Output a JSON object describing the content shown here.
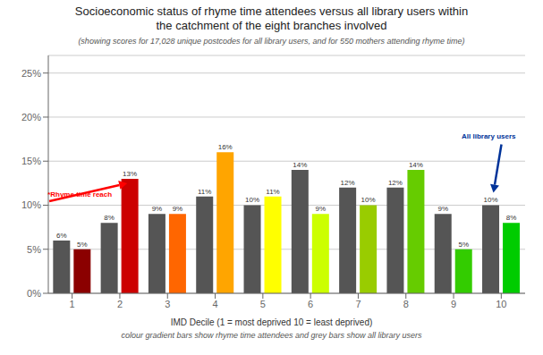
{
  "chart_data": {
    "type": "bar",
    "title": "Socioeconomic status of rhyme time attendees versus all library users within\nthe catchment of the eight branches involved",
    "subtitle": "(showing scores for 17,028 unique postcodes for all library users, and for 550 mothers attending rhyme time)",
    "xlabel": "IMD Decile (1 = most deprived 10 = least deprived)",
    "categories": [
      "1",
      "2",
      "3",
      "4",
      "5",
      "6",
      "7",
      "8",
      "9",
      "10"
    ],
    "series": [
      {
        "color": "#555555",
        "values": [
          0.06,
          0.08,
          0.09,
          0.11,
          0.1,
          0.14,
          0.12,
          0.12,
          0.09,
          0.1
        ],
        "value_labels": [
          "6%",
          "8%",
          "9%",
          "11%",
          "10%",
          "14%",
          "12%",
          "12%",
          "9%",
          "10%"
        ]
      },
      {
        "colors": [
          "#8B0000",
          "#CC0000",
          "#FF6600",
          "#FFA500",
          "#FFFF00",
          "#CCFF00",
          "#99CC00",
          "#66CC00",
          "#33CC00",
          "#00CC00"
        ],
        "values": [
          0.05,
          0.13,
          0.09,
          0.16,
          0.11,
          0.09,
          0.1,
          0.14,
          0.05,
          0.08
        ],
        "value_labels": [
          "5%",
          "13%",
          "9%",
          "16%",
          "11%",
          "9%",
          "10%",
          "14%",
          "5%",
          "8%"
        ]
      }
    ],
    "data_labels": true,
    "ylim": [
      0,
      0.27
    ],
    "yticks": [
      {
        "value": 0,
        "label": "0%"
      },
      {
        "value": 0.05,
        "label": "5%"
      },
      {
        "value": 0.1,
        "label": "10%"
      },
      {
        "value": 0.15,
        "label": "15%"
      },
      {
        "value": 0.2,
        "label": "20%"
      },
      {
        "value": 0.25,
        "label": "25%"
      }
    ],
    "grid": true,
    "annotations": [
      {
        "text": "*Rhyme time reach",
        "color": "red",
        "series": 1,
        "category": "2"
      },
      {
        "text": "All library users",
        "color": "#003399",
        "series": 0,
        "category": "10"
      },
      {
        "text": "colour gradient bars show rhyme time attendees and grey bars show all library users"
      }
    ]
  }
}
